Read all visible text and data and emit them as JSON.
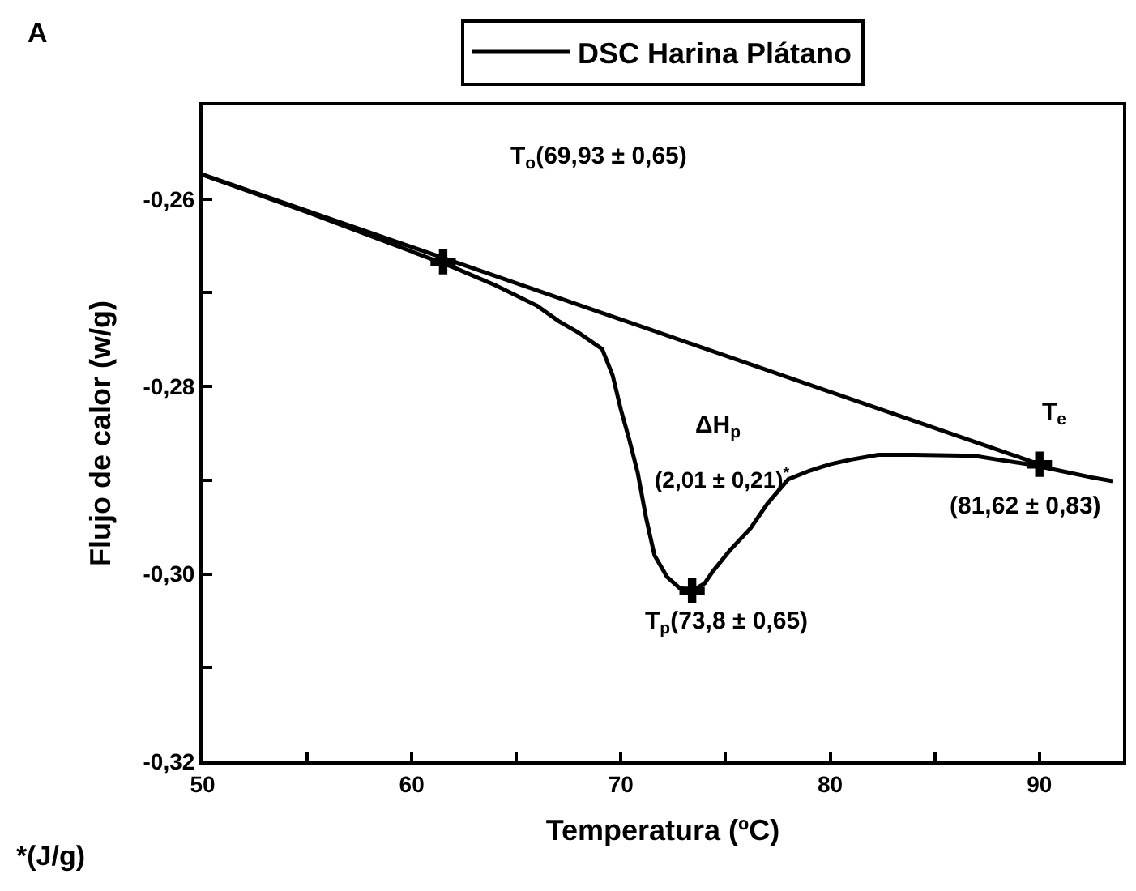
{
  "chart_data": {
    "type": "line",
    "xlabel": "Temperatura (ºC)",
    "ylabel": "Flujo de calor (w/g)",
    "xlim": [
      50,
      94
    ],
    "ylim": [
      -0.32,
      -0.25
    ],
    "xticks": [
      50,
      {
        "value": 55,
        "label": null
      },
      60,
      {
        "value": 65,
        "label": null
      },
      70,
      {
        "value": 75,
        "label": null
      },
      80,
      {
        "value": 85,
        "label": null
      },
      90
    ],
    "yticks": [
      {
        "value": -0.32,
        "label": "-0,32"
      },
      {
        "value": -0.31,
        "label": null
      },
      {
        "value": -0.3,
        "label": "-0,30"
      },
      {
        "value": -0.29,
        "label": null
      },
      {
        "value": -0.28,
        "label": "-0,28"
      },
      {
        "value": -0.27,
        "label": null
      },
      {
        "value": -0.26,
        "label": "-0,26"
      }
    ],
    "legend": "top",
    "series": [
      {
        "name": "DSC Harina Plátano",
        "color": "#000000",
        "x": [
          50,
          55,
          60,
          62,
          64,
          66,
          67,
          68,
          69.1,
          69.6,
          70,
          70.4,
          70.8,
          71.2,
          71.6,
          72.2,
          72.8,
          73.4,
          74,
          74.4,
          75.2,
          76.2,
          77,
          78,
          79,
          80,
          81,
          82.3,
          84,
          86.9,
          88,
          89.5,
          91,
          92.5,
          93.5
        ],
        "values": [
          -0.2574,
          -0.2614,
          -0.2656,
          -0.2673,
          -0.2692,
          -0.2714,
          -0.273,
          -0.2743,
          -0.276,
          -0.2788,
          -0.2825,
          -0.2857,
          -0.2892,
          -0.294,
          -0.298,
          -0.3003,
          -0.3015,
          -0.3018,
          -0.301,
          -0.2997,
          -0.2975,
          -0.2951,
          -0.2925,
          -0.2899,
          -0.289,
          -0.2883,
          -0.2878,
          -0.2873,
          -0.2873,
          -0.2874,
          -0.2878,
          -0.2883,
          -0.289,
          -0.2897,
          -0.2901
        ]
      },
      {
        "color": "#000000",
        "x": [
          50,
          90
        ],
        "values": [
          -0.2574,
          -0.2883
        ]
      },
      {
        "type": "scatter",
        "marker": "cross",
        "color": "#000000",
        "x": [
          61.5,
          73.4,
          90.0
        ],
        "values": [
          -0.2667,
          -0.3018,
          -0.2883
        ]
      }
    ],
    "annotations": [
      "T$_{o}$(69,93 ± 0,65)",
      "ΔH$_{p}$",
      "(2,01 ± 0,21)$^{*}$",
      "T$_{e}$",
      "(81,62 ± 0,83)",
      "T$_{p}$(73,8 ± 0,65)",
      "*(J/g)",
      "A"
    ]
  }
}
